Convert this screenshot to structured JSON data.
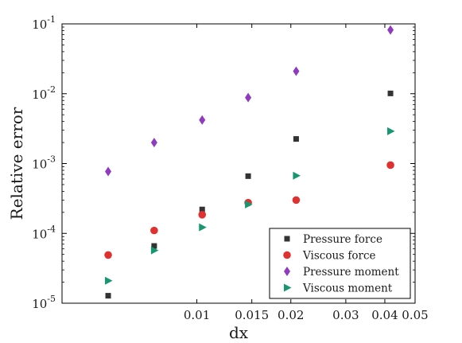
{
  "chart_data": {
    "type": "scatter",
    "xlabel": "dx",
    "ylabel": "Relative error",
    "xscale": "log",
    "yscale": "log",
    "xlim": [
      0.0037,
      0.05
    ],
    "ylim": [
      1e-05,
      0.1
    ],
    "grid": false,
    "legend_position": "bottom-right",
    "x_ticks": [
      {
        "value": 0.01,
        "label": "0.01"
      },
      {
        "value": 0.015,
        "label": "0.015"
      },
      {
        "value": 0.02,
        "label": "0.02"
      },
      {
        "value": 0.03,
        "label": "0.03"
      },
      {
        "value": 0.04,
        "label": "0.04"
      },
      {
        "value": 0.05,
        "label": "0.05"
      }
    ],
    "y_ticks": [
      {
        "value": 1e-05,
        "base": "10",
        "exp": "-5"
      },
      {
        "value": 0.0001,
        "base": "10",
        "exp": "-4"
      },
      {
        "value": 0.001,
        "base": "10",
        "exp": "-3"
      },
      {
        "value": 0.01,
        "base": "10",
        "exp": "-2"
      },
      {
        "value": 0.1,
        "base": "10",
        "exp": "-1"
      }
    ],
    "series": [
      {
        "name": "Pressure force",
        "marker": "square",
        "color": "#333333",
        "points": [
          {
            "x": 0.0052,
            "y": 1.28e-05
          },
          {
            "x": 0.0073,
            "y": 6.6e-05
          },
          {
            "x": 0.0104,
            "y": 0.00022
          },
          {
            "x": 0.0146,
            "y": 0.00066
          },
          {
            "x": 0.0208,
            "y": 0.00225
          },
          {
            "x": 0.0417,
            "y": 0.0101
          }
        ]
      },
      {
        "name": "Viscous force",
        "marker": "circle",
        "color": "#e03131",
        "points": [
          {
            "x": 0.0052,
            "y": 4.9e-05
          },
          {
            "x": 0.0073,
            "y": 0.00011
          },
          {
            "x": 0.0104,
            "y": 0.000185
          },
          {
            "x": 0.0146,
            "y": 0.000275
          },
          {
            "x": 0.0208,
            "y": 0.0003
          },
          {
            "x": 0.0417,
            "y": 0.00095
          }
        ]
      },
      {
        "name": "Pressure moment",
        "marker": "diamond",
        "color": "#8e3bbf",
        "points": [
          {
            "x": 0.0052,
            "y": 0.00077
          },
          {
            "x": 0.0073,
            "y": 0.002
          },
          {
            "x": 0.0104,
            "y": 0.0042
          },
          {
            "x": 0.0146,
            "y": 0.0088
          },
          {
            "x": 0.0208,
            "y": 0.021
          },
          {
            "x": 0.0417,
            "y": 0.082
          }
        ]
      },
      {
        "name": "Viscous moment",
        "marker": "triangle-right",
        "color": "#16976f",
        "points": [
          {
            "x": 0.0052,
            "y": 2.1e-05
          },
          {
            "x": 0.0073,
            "y": 5.7e-05
          },
          {
            "x": 0.0104,
            "y": 0.000122
          },
          {
            "x": 0.0146,
            "y": 0.00026
          },
          {
            "x": 0.0208,
            "y": 0.00067
          },
          {
            "x": 0.0417,
            "y": 0.0029
          }
        ]
      }
    ]
  }
}
